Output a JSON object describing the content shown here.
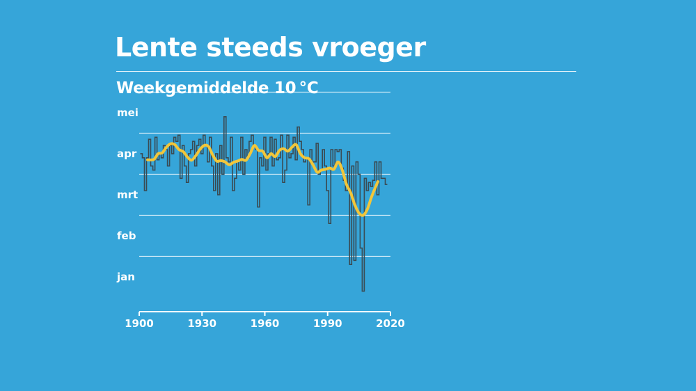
{
  "title": "Lente steeds vroeger",
  "subtitle": "Weekgemiddelde 10 °C",
  "colors": {
    "background": "#36a5d9",
    "text": "#ffffff",
    "annual": "#3a4a52",
    "trend": "#f2c63a",
    "grid": "#ffffff"
  },
  "chart_data": {
    "type": "line",
    "title": "Lente steeds vroeger",
    "subtitle": "Weekgemiddelde 10 °C",
    "xlabel": "",
    "ylabel": "",
    "x_unit": "year",
    "y_unit": "month index (1 = 1 jan)",
    "xlim": [
      1900,
      2020
    ],
    "ylim": [
      0.65,
      5.6
    ],
    "x_ticks": [
      1900,
      1930,
      1960,
      1990,
      2020
    ],
    "x_tick_labels": [
      "1900",
      "1930",
      "1960",
      "1990",
      "2020"
    ],
    "y_ticks": [
      1.5,
      2.5,
      3.5,
      4.5,
      5.5
    ],
    "y_tick_labels": [
      "jan",
      "feb",
      "mrt",
      "apr",
      "mei"
    ],
    "gridlines": [
      2,
      3,
      4,
      5,
      6
    ],
    "grid": true,
    "legend": "none",
    "series": [
      {
        "name": "annual",
        "style": "step",
        "x": [
          1901,
          1902,
          1903,
          1904,
          1905,
          1906,
          1907,
          1908,
          1909,
          1910,
          1911,
          1912,
          1913,
          1914,
          1915,
          1916,
          1917,
          1918,
          1919,
          1920,
          1921,
          1922,
          1923,
          1924,
          1925,
          1926,
          1927,
          1928,
          1929,
          1930,
          1931,
          1932,
          1933,
          1934,
          1935,
          1936,
          1937,
          1938,
          1939,
          1940,
          1941,
          1942,
          1943,
          1944,
          1945,
          1946,
          1947,
          1948,
          1949,
          1950,
          1951,
          1952,
          1953,
          1954,
          1955,
          1956,
          1957,
          1958,
          1959,
          1960,
          1961,
          1962,
          1963,
          1964,
          1965,
          1966,
          1967,
          1968,
          1969,
          1970,
          1971,
          1972,
          1973,
          1974,
          1975,
          1976,
          1977,
          1978,
          1979,
          1980,
          1981,
          1982,
          1983,
          1984,
          1985,
          1986,
          1987,
          1988,
          1989,
          1990,
          1991,
          1992,
          1993,
          1994,
          1995,
          1996,
          1997,
          1998,
          1999,
          2000,
          2001,
          2002,
          2003,
          2004,
          2005,
          2006,
          2007,
          2008,
          2009,
          2010,
          2011,
          2012,
          2013,
          2014,
          2015,
          2016,
          2017,
          2018
        ],
        "values": [
          4.5,
          4.4,
          3.6,
          4.4,
          4.85,
          4.2,
          4.1,
          4.9,
          4.35,
          4.5,
          4.4,
          4.7,
          4.6,
          4.2,
          4.7,
          4.5,
          4.9,
          4.8,
          4.95,
          3.9,
          4.7,
          4.2,
          3.8,
          4.5,
          4.6,
          4.8,
          4.2,
          4.7,
          4.85,
          4.5,
          4.95,
          4.7,
          4.3,
          4.9,
          4.2,
          3.6,
          4.5,
          3.5,
          4.7,
          4.0,
          5.4,
          4.4,
          4.3,
          4.9,
          3.6,
          3.9,
          4.3,
          4.1,
          4.9,
          4.0,
          4.6,
          4.4,
          4.8,
          4.95,
          4.7,
          4.6,
          3.2,
          4.4,
          4.2,
          4.9,
          4.1,
          4.5,
          4.9,
          4.2,
          4.85,
          4.35,
          4.4,
          4.95,
          3.8,
          4.1,
          4.95,
          4.4,
          4.5,
          4.9,
          4.35,
          5.15,
          4.8,
          4.6,
          4.3,
          4.4,
          3.25,
          4.6,
          4.3,
          4.3,
          4.75,
          4.0,
          4.1,
          4.6,
          4.2,
          3.6,
          2.8,
          4.6,
          4.2,
          4.6,
          4.55,
          4.6,
          4.15,
          3.85,
          3.6,
          4.55,
          1.8,
          4.2,
          1.9,
          4.3,
          4.0,
          2.2,
          1.15,
          3.9,
          3.6,
          3.8,
          3.7,
          3.85,
          4.3,
          3.5,
          4.3,
          3.9,
          3.9,
          3.75
        ]
      },
      {
        "name": "trend",
        "style": "smooth",
        "x": [
          1904,
          1907,
          1909,
          1911,
          1913,
          1915,
          1917,
          1919,
          1921,
          1923,
          1925,
          1927,
          1929,
          1931,
          1933,
          1935,
          1937,
          1939,
          1941,
          1943,
          1945,
          1947,
          1949,
          1951,
          1953,
          1955,
          1957,
          1959,
          1961,
          1963,
          1965,
          1967,
          1969,
          1971,
          1973,
          1975,
          1977,
          1979,
          1981,
          1983,
          1985,
          1987,
          1989,
          1991,
          1993,
          1995,
          1997,
          1999,
          2001,
          2003,
          2005,
          2007,
          2009,
          2011,
          2013,
          2014
        ],
        "values": [
          4.35,
          4.36,
          4.5,
          4.52,
          4.66,
          4.74,
          4.72,
          4.6,
          4.55,
          4.42,
          4.34,
          4.45,
          4.6,
          4.7,
          4.68,
          4.48,
          4.32,
          4.33,
          4.3,
          4.23,
          4.29,
          4.32,
          4.36,
          4.34,
          4.5,
          4.7,
          4.58,
          4.56,
          4.4,
          4.5,
          4.43,
          4.58,
          4.62,
          4.56,
          4.66,
          4.72,
          4.5,
          4.4,
          4.38,
          4.23,
          4.05,
          4.1,
          4.12,
          4.15,
          4.12,
          4.3,
          4.1,
          3.75,
          3.55,
          3.25,
          3.05,
          3.0,
          3.15,
          3.45,
          3.7,
          3.82
        ]
      }
    ]
  }
}
